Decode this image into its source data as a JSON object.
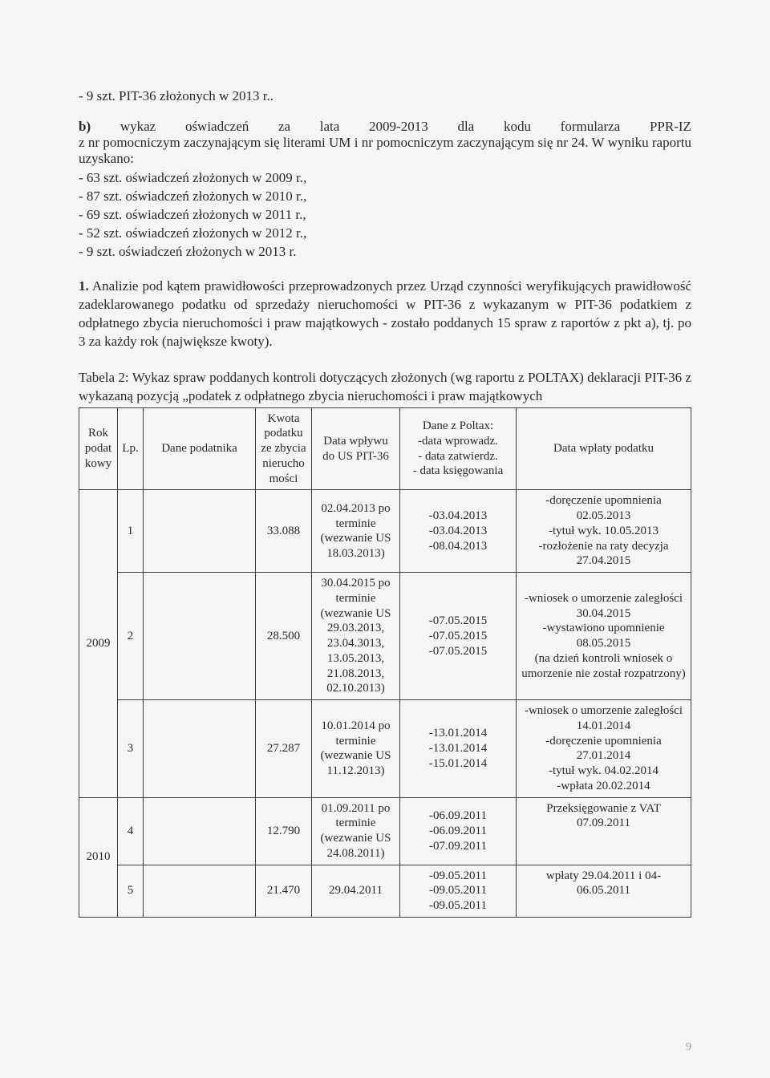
{
  "line1": "- 9 szt. PIT-36 złożonych w 2013 r..",
  "section_b_line1_parts": [
    "b)",
    "wykaz",
    "oświadczeń",
    "za",
    "lata",
    "2009-2013",
    "dla",
    "kodu",
    "formularza",
    "PPR-IZ"
  ],
  "section_b_line2": "z nr pomocniczym zaczynającym się literami UM i nr pomocniczym zaczynającym się nr 24. W wyniku raportu uzyskano:",
  "list_items": [
    "- 63 szt. oświadczeń złożonych w 2009 r.,",
    "- 87 szt. oświadczeń złożonych w 2010 r.,",
    "- 69 szt. oświadczeń złożonych w 2011 r.,",
    "- 52 szt. oświadczeń złożonych w 2012 r.,",
    "- 9 szt. oświadczeń złożonych w 2013 r."
  ],
  "para1_bold": "1.",
  "para1_text": " Analizie pod kątem prawidłowości przeprowadzonych przez Urząd czynności weryfikujących prawidłowość zadeklarowanego podatku od sprzedaży nieruchomości w PIT-36  z wykazanym w PIT-36 podatkiem z odpłatnego zbycia nieruchomości i praw majątkowych - zostało poddanych 15 spraw z raportów z pkt a), tj. po 3 za każdy rok (największe kwoty).",
  "tabela_caption": "Tabela 2: Wykaz spraw poddanych kontroli dotyczących złożonych (wg raportu z POLTAX) deklaracji PIT-36 z wykazaną pozycją „podatek z odpłatnego zbycia nieruchomości i praw majątkowych",
  "table": {
    "headers": {
      "rok": "Rok podat kowy",
      "lp": "Lp.",
      "dane": "Dane podatnika",
      "kwota": "Kwota podatku ze zbycia nierucho mości",
      "wplyw": "Data wpływu do US PIT-36",
      "poltax": "Dane z Poltax:\n-data wprowadz.\n- data zatwierdz.\n- data księgowania",
      "wplata": "Data wpłaty podatku"
    },
    "rows": [
      {
        "rok": "2009",
        "rok_rowspan": 3,
        "lp": "1",
        "dane": "",
        "kwota": "33.088",
        "wplyw": "02.04.2013 po terminie (wezwanie US 18.03.2013)",
        "poltax": "-03.04.2013\n-03.04.2013\n-08.04.2013",
        "wplata": "-doręczenie upomnienia 02.05.2013\n-tytuł wyk. 10.05.2013\n-rozłożenie na raty decyzja 27.04.2015"
      },
      {
        "lp": "2",
        "dane": "",
        "kwota": "28.500",
        "wplyw": "30.04.2015 po terminie (wezwanie US 29.03.2013, 23.04.3013, 13.05.2013, 21.08.2013, 02.10.2013)",
        "poltax": "-07.05.2015\n-07.05.2015\n-07.05.2015",
        "wplata": "-wniosek o umorzenie zaległości 30.04.2015\n-wystawiono upomnienie 08.05.2015\n(na dzień kontroli wniosek o umorzenie nie został rozpatrzony)"
      },
      {
        "lp": "3",
        "dane": "",
        "kwota": "27.287",
        "wplyw": "10.01.2014 po terminie (wezwanie US 11.12.2013)",
        "poltax": "-13.01.2014\n-13.01.2014\n-15.01.2014",
        "wplata": "-wniosek o umorzenie zaległości 14.01.2014\n-doręczenie upomnienia 27.01.2014\n-tytuł wyk. 04.02.2014\n-wpłata 20.02.2014"
      },
      {
        "rok": "2010",
        "rok_rowspan": 2,
        "lp": "4",
        "dane": "",
        "kwota": "12.790",
        "wplyw": "01.09.2011 po terminie (wezwanie US 24.08.2011)",
        "poltax": "-06.09.2011\n-06.09.2011\n-07.09.2011",
        "wplata": "Przeksięgowanie z VAT 07.09.2011",
        "wplata_valign": "top"
      },
      {
        "lp": "5",
        "dane": "",
        "kwota": "21.470",
        "wplyw": "29.04.2011",
        "poltax": "-09.05.2011\n-09.05.2011\n-09.05.2011",
        "wplata": "wpłaty 29.04.2011 i 04-06.05.2011",
        "wplata_valign": "top"
      }
    ]
  },
  "page_num": "9"
}
